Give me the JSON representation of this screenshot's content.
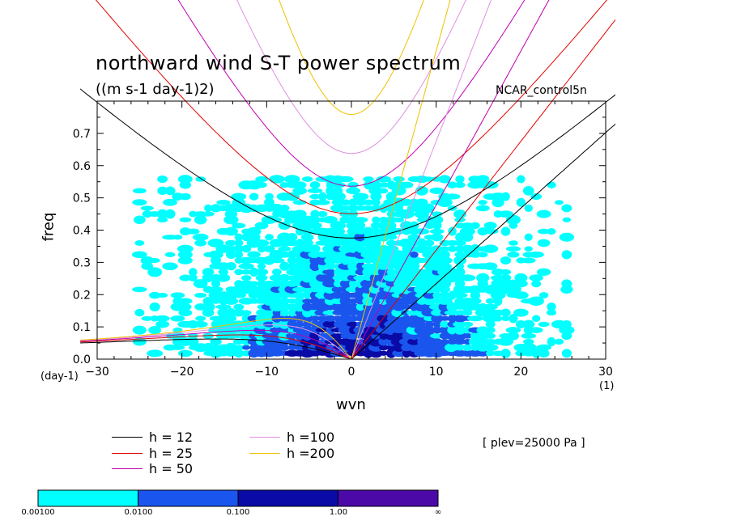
{
  "header": {
    "title": "northward wind S-T power spectrum",
    "units": "((m s-1 day-1)2)",
    "run_name": "NCAR_control5n"
  },
  "axes": {
    "ylabel": "freq",
    "xlabel": "wvn",
    "x_unit_label": "(day-1)",
    "x_unit_label2": "(1)"
  },
  "annotation": "[ plev=25000 Pa ]",
  "legend": [
    {
      "label": "h = 12",
      "color": "#000000"
    },
    {
      "label": "h = 25",
      "color": "#e00000"
    },
    {
      "label": "h = 50",
      "color": "#c000b0"
    },
    {
      "label": "h =100",
      "color": "#e090e0"
    },
    {
      "label": "h =200",
      "color": "#f0c000"
    }
  ],
  "colorbar": {
    "labels": [
      "0.00100",
      "0.0100",
      "0.100",
      "1.00",
      "∞"
    ],
    "colors": [
      "#00ffff",
      "#1a55ee",
      "#0a0aa6",
      "#4b0aa8"
    ]
  },
  "chart_data": {
    "type": "heatmap",
    "title": "northward wind S-T power spectrum",
    "subtitle": "((m s-1 day-1)2)",
    "xlabel": "wvn",
    "ylabel": "freq",
    "xlim": [
      -30,
      30
    ],
    "ylim": [
      0,
      0.8
    ],
    "x_ticks": [
      -30,
      -20,
      -10,
      0,
      10,
      20,
      30
    ],
    "x_tick_labels": [
      "−30",
      "−20",
      "−10",
      "0",
      "10",
      "20",
      "30"
    ],
    "y_ticks": [
      0.0,
      0.1,
      0.2,
      0.3,
      0.4,
      0.5,
      0.6,
      0.7
    ],
    "y_tick_labels": [
      "0.0",
      "0.1",
      "0.2",
      "0.3",
      "0.4",
      "0.5",
      "0.6",
      "0.7"
    ],
    "color_levels": [
      0.001,
      0.01,
      0.1,
      1.0
    ],
    "dispersion_curves": {
      "equivalent_depths_m": [
        12,
        25,
        50,
        100,
        200
      ],
      "families": [
        "kelvin",
        "rossby",
        "inertia-gravity",
        "mixed-rossby-gravity"
      ]
    }
  }
}
